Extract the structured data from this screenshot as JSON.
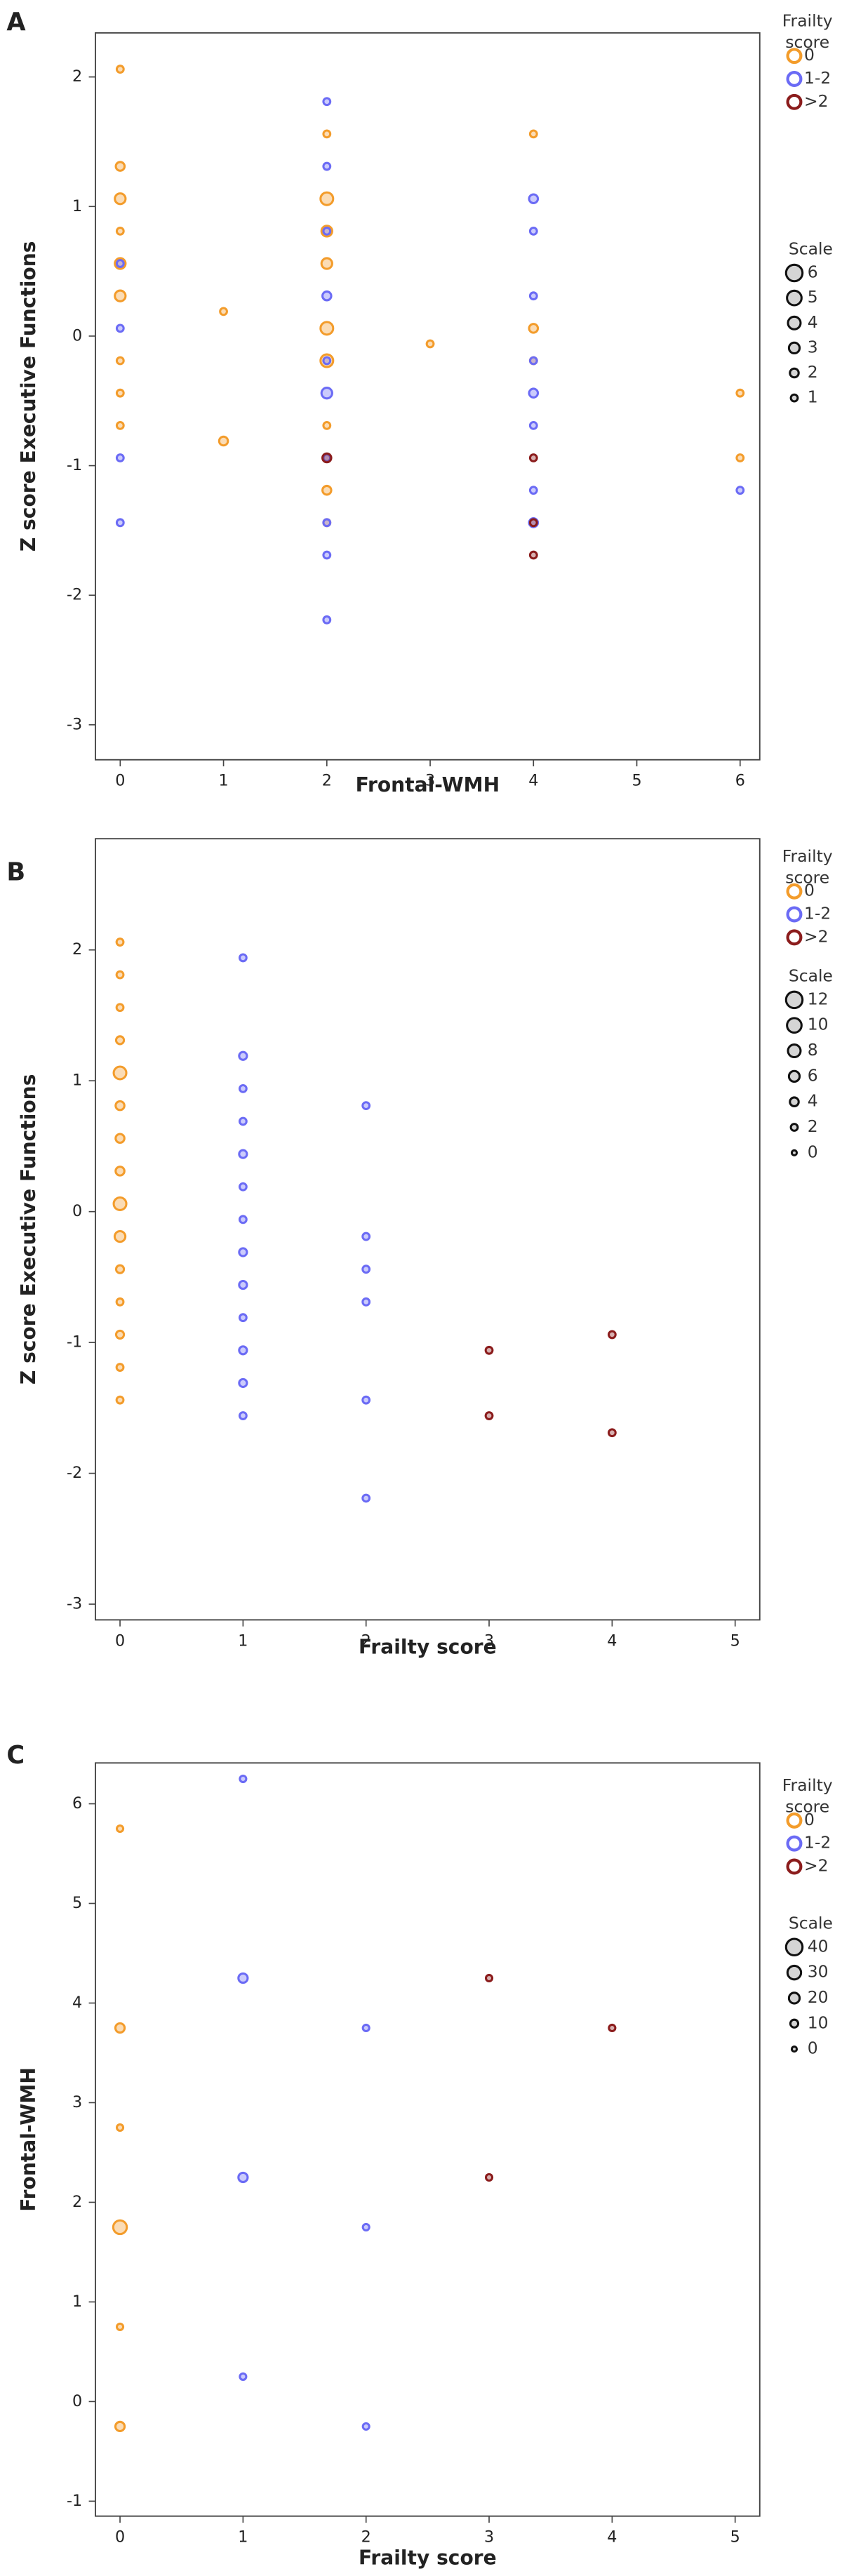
{
  "chart_data": [
    {
      "type": "scatter",
      "panel_label": "A",
      "x_label": "Frontal-WMH",
      "y_label": "Z score Executive Functions",
      "xlim": [
        -0.24,
        6.19
      ],
      "ylim": [
        -3.27,
        2.34
      ],
      "xticks": [
        0,
        1,
        2,
        3,
        4,
        5,
        6
      ],
      "yticks": [
        -3,
        -2,
        -1,
        0,
        1,
        2
      ],
      "legend_title": "Frailty score",
      "series": [
        {
          "name": "0",
          "color": "#f39c2b",
          "x": [
            0,
            0,
            0,
            0,
            0,
            0,
            0,
            0,
            0,
            1,
            1,
            2,
            2,
            2,
            2,
            2,
            2,
            2,
            2,
            2,
            3,
            4,
            4,
            4,
            6,
            6
          ],
          "values": [
            2.06,
            1.31,
            1.06,
            0.81,
            0.56,
            0.31,
            -0.19,
            -0.44,
            -0.69,
            0.19,
            -0.81,
            1.56,
            1.06,
            0.81,
            0.56,
            0.06,
            -0.19,
            -0.69,
            -1.19,
            -1.44,
            -0.06,
            1.56,
            0.06,
            -0.19,
            -0.44,
            -0.94
          ],
          "sizes": [
            1,
            2,
            3,
            1,
            3,
            3,
            1,
            1,
            1,
            1,
            2,
            1,
            4,
            3,
            3,
            4,
            4,
            1,
            2,
            1,
            1,
            1,
            2,
            1,
            1,
            1
          ]
        },
        {
          "name": "1-2",
          "color": "#6b6bf5",
          "x": [
            0,
            0,
            0,
            0,
            2,
            2,
            2,
            2,
            2,
            2,
            2,
            2,
            2,
            2,
            4,
            4,
            4,
            4,
            4,
            4,
            4,
            4,
            6
          ],
          "values": [
            0.56,
            0.06,
            -0.94,
            -1.44,
            1.81,
            1.31,
            0.81,
            0.31,
            -0.19,
            -0.44,
            -0.94,
            -1.44,
            -1.69,
            -2.19,
            1.06,
            0.81,
            0.31,
            -0.19,
            -0.44,
            -0.69,
            -1.19,
            -1.44,
            -1.19
          ],
          "sizes": [
            1,
            1,
            1,
            1,
            1,
            1,
            1,
            2,
            1,
            3,
            1,
            1,
            1,
            1,
            2,
            1,
            1,
            1,
            2,
            1,
            1,
            2,
            1
          ]
        },
        {
          "name": ">2",
          "color": "#8b1c1c",
          "x": [
            2,
            4,
            4,
            4
          ],
          "values": [
            -0.94,
            -0.94,
            -1.44,
            -1.69
          ],
          "sizes": [
            2,
            1,
            1,
            1
          ]
        }
      ],
      "size_legend": {
        "title": "Scale",
        "values": [
          6,
          5,
          4,
          3,
          2,
          1
        ]
      }
    },
    {
      "type": "scatter",
      "panel_label": "B",
      "x_label": "Frailty score",
      "y_label": "Z score Executive Functions",
      "xlim": [
        -0.2,
        5.2
      ],
      "ylim": [
        -3.12,
        2.85
      ],
      "xticks": [
        0,
        1,
        2,
        3,
        4,
        5
      ],
      "yticks": [
        -3,
        -2,
        -1,
        0,
        1,
        2
      ],
      "legend_title": "Frailty score",
      "series": [
        {
          "name": "0",
          "color": "#f39c2b",
          "x": [
            0,
            0,
            0,
            0,
            0,
            0,
            0,
            0,
            0,
            0,
            0,
            0,
            0,
            0,
            0
          ],
          "values": [
            2.06,
            1.81,
            1.56,
            1.31,
            1.06,
            0.81,
            0.56,
            0.31,
            0.06,
            -0.19,
            -0.44,
            -0.69,
            -0.94,
            -1.19,
            -1.44
          ],
          "sizes": [
            2,
            2,
            2,
            3,
            8,
            4,
            4,
            4,
            8,
            6,
            3,
            2,
            3,
            2,
            2
          ]
        },
        {
          "name": "1-2",
          "color": "#6b6bf5",
          "x": [
            1,
            1,
            1,
            1,
            1,
            1,
            1,
            1,
            1,
            1,
            1,
            1,
            1,
            2,
            2,
            2,
            2,
            2,
            2
          ],
          "values": [
            1.94,
            1.19,
            0.94,
            0.69,
            0.44,
            0.19,
            -0.06,
            -0.31,
            -0.56,
            -0.81,
            -1.06,
            -1.31,
            -1.56,
            0.81,
            -0.19,
            -0.44,
            -0.69,
            -1.44,
            -2.19
          ],
          "sizes": [
            2,
            3,
            2,
            2,
            3,
            2,
            2,
            3,
            3,
            2,
            3,
            3,
            2,
            2,
            2,
            2,
            2,
            2,
            2
          ]
        },
        {
          "name": ">2",
          "color": "#8b1c1c",
          "x": [
            3,
            3,
            4,
            4
          ],
          "values": [
            -1.06,
            -1.56,
            -0.94,
            -1.69
          ],
          "sizes": [
            2,
            2,
            2,
            2
          ]
        }
      ],
      "size_legend": {
        "title": "Scale",
        "values": [
          12,
          10,
          8,
          6,
          4,
          2,
          0
        ]
      }
    },
    {
      "type": "scatter",
      "panel_label": "C",
      "x_label": "Frailty score",
      "y_label": "Frontal-WMH",
      "xlim": [
        -0.2,
        5.2
      ],
      "ylim": [
        -1.15,
        6.41
      ],
      "xticks": [
        0,
        1,
        2,
        3,
        4,
        5
      ],
      "yticks": [
        -1,
        0,
        1,
        2,
        3,
        4,
        5,
        6
      ],
      "legend_title": "Frailty score",
      "series": [
        {
          "name": "0",
          "color": "#f39c2b",
          "x": [
            0,
            0,
            0,
            0,
            0,
            0
          ],
          "values": [
            5.75,
            3.75,
            2.75,
            1.75,
            0.75,
            -0.25
          ],
          "sizes": [
            5,
            15,
            5,
            30,
            5,
            15
          ]
        },
        {
          "name": "1-2",
          "color": "#6b6bf5",
          "x": [
            1,
            1,
            1,
            1,
            2,
            2,
            2
          ],
          "values": [
            6.25,
            4.25,
            2.25,
            0.25,
            3.75,
            1.75,
            -0.25
          ],
          "sizes": [
            5,
            15,
            15,
            5,
            5,
            5,
            5
          ]
        },
        {
          "name": ">2",
          "color": "#8b1c1c",
          "x": [
            3,
            3,
            4
          ],
          "values": [
            4.25,
            2.25,
            3.75
          ],
          "sizes": [
            5,
            5,
            5
          ]
        }
      ],
      "size_legend": {
        "title": "Scale",
        "values": [
          40,
          30,
          20,
          10,
          0
        ]
      }
    }
  ]
}
